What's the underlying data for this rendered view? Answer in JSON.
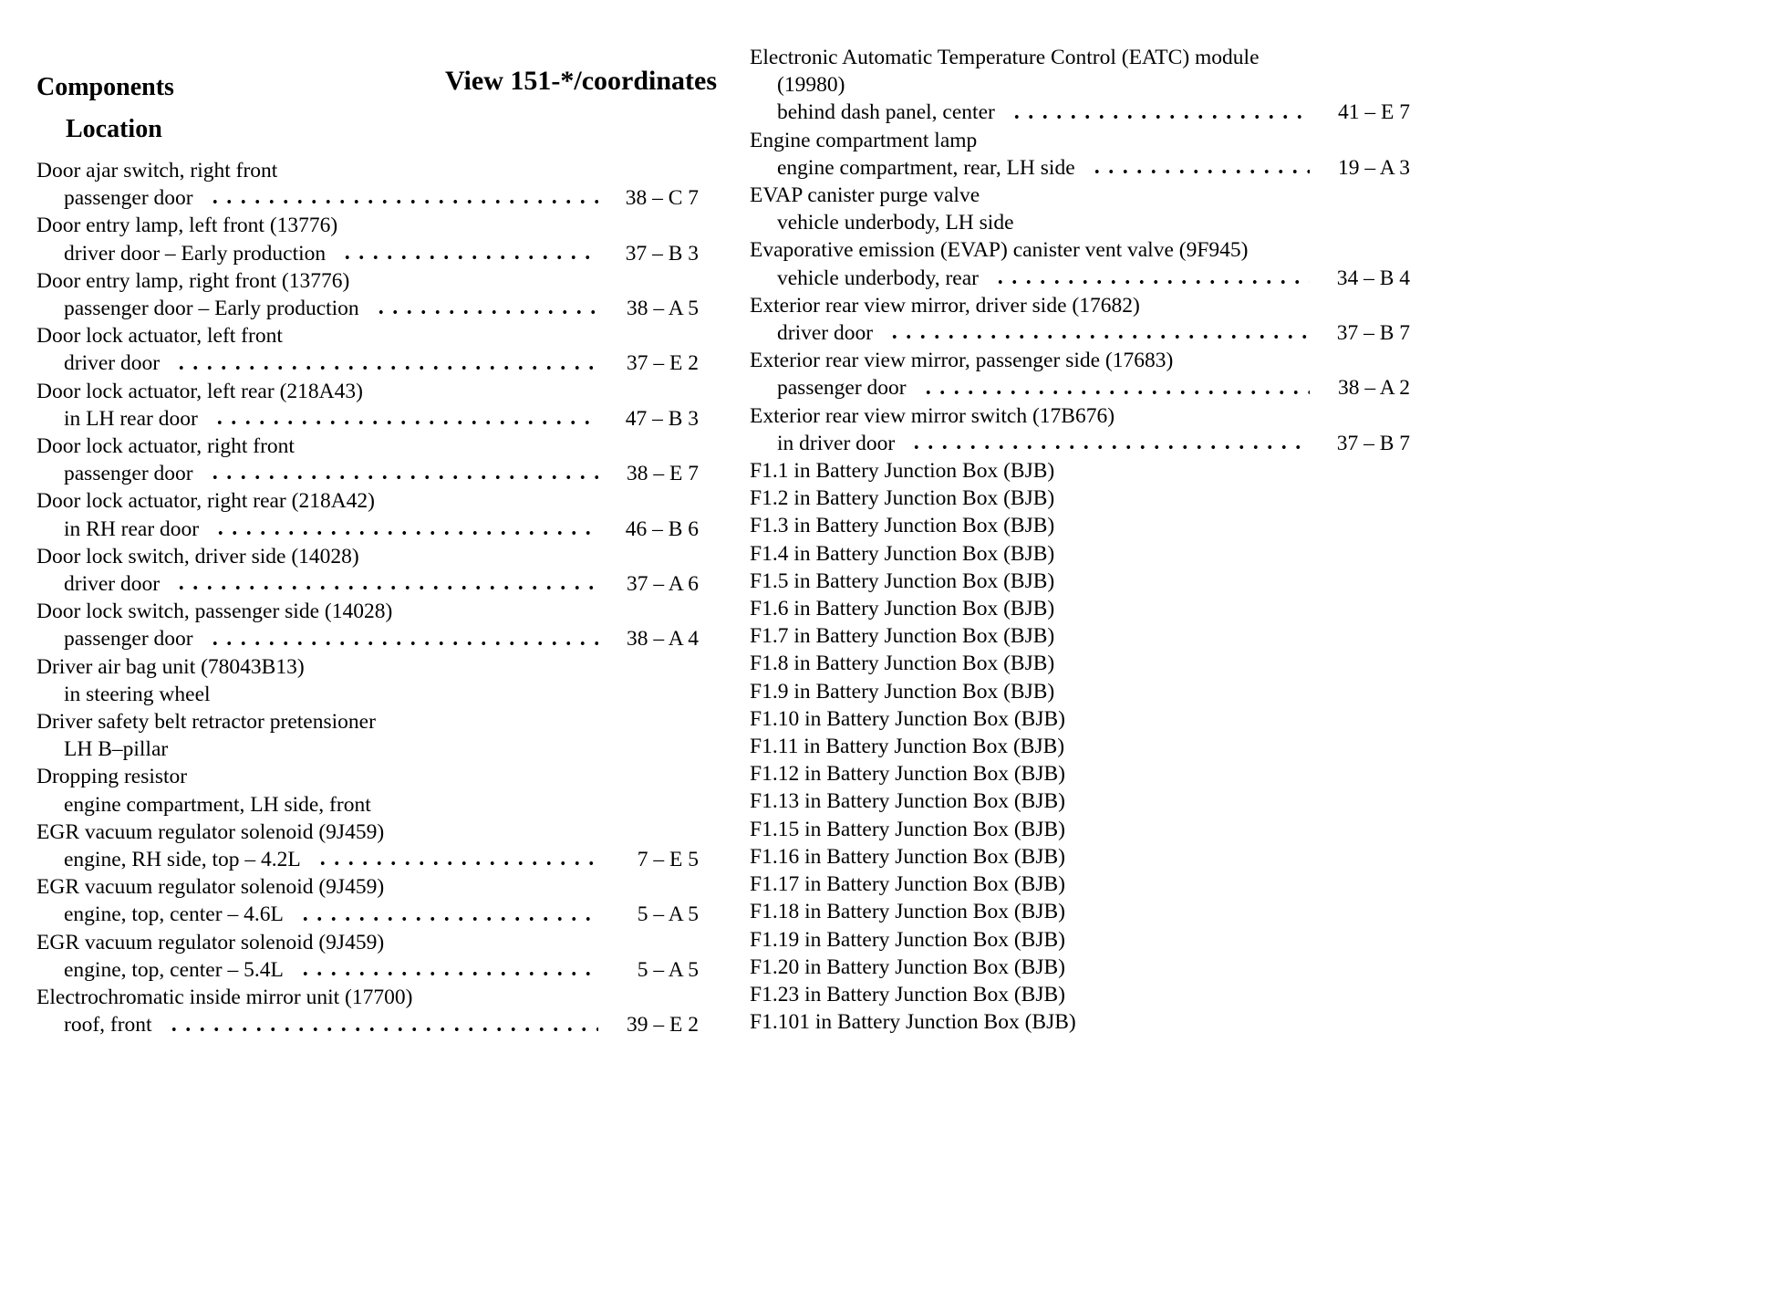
{
  "header": {
    "view_title": "View 151-*/coordinates",
    "components_heading": "Components",
    "location_heading": "Location"
  },
  "left_entries": [
    {
      "name_lines": [
        "Door ajar switch, right front"
      ],
      "loc_lines": [
        {
          "text": "passenger door",
          "coord": "38 – C 7"
        }
      ]
    },
    {
      "name_lines": [
        "Door entry lamp, left front (13776)"
      ],
      "loc_lines": [
        {
          "text": "driver door – Early production",
          "coord": "37 – B 3"
        }
      ]
    },
    {
      "name_lines": [
        "Door entry lamp, right front (13776)"
      ],
      "loc_lines": [
        {
          "text": "passenger door – Early production",
          "coord": "38 – A 5"
        }
      ]
    },
    {
      "name_lines": [
        "Door lock actuator, left front"
      ],
      "loc_lines": [
        {
          "text": "driver door",
          "coord": "37 – E 2"
        }
      ]
    },
    {
      "name_lines": [
        "Door lock actuator, left rear (218A43)"
      ],
      "loc_lines": [
        {
          "text": "in LH rear door",
          "coord": "47 – B 3"
        }
      ]
    },
    {
      "name_lines": [
        "Door lock actuator, right front"
      ],
      "loc_lines": [
        {
          "text": "passenger door",
          "coord": "38 – E 7"
        }
      ]
    },
    {
      "name_lines": [
        "Door lock actuator, right rear (218A42)"
      ],
      "loc_lines": [
        {
          "text": "in RH rear door",
          "coord": "46 – B 6"
        }
      ]
    },
    {
      "name_lines": [
        "Door lock switch, driver side (14028)"
      ],
      "loc_lines": [
        {
          "text": "driver door",
          "coord": "37 – A 6"
        }
      ]
    },
    {
      "name_lines": [
        "Door lock switch, passenger side (14028)"
      ],
      "loc_lines": [
        {
          "text": "passenger door",
          "coord": "38 – A 4"
        }
      ]
    },
    {
      "name_lines": [
        "Driver air bag unit (78043B13)"
      ],
      "loc_lines": [
        {
          "text": "in steering wheel",
          "coord": ""
        }
      ]
    },
    {
      "name_lines": [
        "Driver safety belt retractor pretensioner"
      ],
      "loc_lines": [
        {
          "text": "LH B–pillar",
          "coord": ""
        }
      ]
    },
    {
      "name_lines": [
        "Dropping resistor"
      ],
      "loc_lines": [
        {
          "text": "engine compartment, LH side, front",
          "coord": ""
        }
      ]
    },
    {
      "name_lines": [
        "EGR vacuum regulator solenoid (9J459)"
      ],
      "loc_lines": [
        {
          "text": "engine, RH side, top – 4.2L",
          "coord": "7 – E 5"
        }
      ]
    },
    {
      "name_lines": [
        "EGR vacuum regulator solenoid (9J459)"
      ],
      "loc_lines": [
        {
          "text": "engine, top, center – 4.6L",
          "coord": "5 – A 5"
        }
      ]
    },
    {
      "name_lines": [
        "EGR vacuum regulator solenoid (9J459)"
      ],
      "loc_lines": [
        {
          "text": "engine, top, center – 5.4L",
          "coord": "5 – A 5"
        }
      ]
    },
    {
      "name_lines": [
        "Electrochromatic inside mirror unit (17700)"
      ],
      "loc_lines": [
        {
          "text": "roof, front",
          "coord": "39 – E 2"
        }
      ]
    }
  ],
  "right_entries": [
    {
      "name_lines": [
        "Electronic Automatic Temperature Control (EATC) module",
        "(19980)"
      ],
      "loc_lines": [
        {
          "text": "behind dash panel, center",
          "coord": "41 – E 7"
        }
      ]
    },
    {
      "name_lines": [
        "Engine compartment lamp"
      ],
      "loc_lines": [
        {
          "text": "engine compartment, rear, LH side",
          "coord": "19 – A 3"
        }
      ]
    },
    {
      "name_lines": [
        "EVAP canister purge valve"
      ],
      "loc_lines": [
        {
          "text": "vehicle underbody, LH side",
          "coord": ""
        }
      ]
    },
    {
      "name_lines": [
        "Evaporative emission (EVAP) canister vent valve (9F945)"
      ],
      "loc_lines": [
        {
          "text": "vehicle underbody, rear",
          "coord": "34 – B 4"
        }
      ]
    },
    {
      "name_lines": [
        "Exterior rear view mirror, driver side (17682)"
      ],
      "loc_lines": [
        {
          "text": "driver door",
          "coord": "37 – B 7"
        }
      ]
    },
    {
      "name_lines": [
        "Exterior rear view mirror, passenger side (17683)"
      ],
      "loc_lines": [
        {
          "text": "passenger door",
          "coord": "38 – A 2"
        }
      ]
    },
    {
      "name_lines": [
        "Exterior rear view mirror switch (17B676)"
      ],
      "loc_lines": [
        {
          "text": "in driver door",
          "coord": "37 – B 7"
        }
      ]
    },
    {
      "name_lines": [
        "F1.1 in Battery Junction Box (BJB)"
      ],
      "loc_lines": []
    },
    {
      "name_lines": [
        "F1.2 in Battery Junction Box (BJB)"
      ],
      "loc_lines": []
    },
    {
      "name_lines": [
        "F1.3 in Battery Junction Box (BJB)"
      ],
      "loc_lines": []
    },
    {
      "name_lines": [
        "F1.4 in Battery Junction Box (BJB)"
      ],
      "loc_lines": []
    },
    {
      "name_lines": [
        "F1.5 in Battery Junction Box (BJB)"
      ],
      "loc_lines": []
    },
    {
      "name_lines": [
        "F1.6 in Battery Junction Box (BJB)"
      ],
      "loc_lines": []
    },
    {
      "name_lines": [
        "F1.7 in Battery Junction Box (BJB)"
      ],
      "loc_lines": []
    },
    {
      "name_lines": [
        "F1.8 in Battery Junction Box (BJB)"
      ],
      "loc_lines": []
    },
    {
      "name_lines": [
        "F1.9 in Battery Junction Box (BJB)"
      ],
      "loc_lines": []
    },
    {
      "name_lines": [
        "F1.10 in Battery Junction Box (BJB)"
      ],
      "loc_lines": []
    },
    {
      "name_lines": [
        "F1.11 in Battery Junction Box (BJB)"
      ],
      "loc_lines": []
    },
    {
      "name_lines": [
        "F1.12 in Battery Junction Box (BJB)"
      ],
      "loc_lines": []
    },
    {
      "name_lines": [
        "F1.13 in Battery Junction Box (BJB)"
      ],
      "loc_lines": []
    },
    {
      "name_lines": [
        "F1.15 in Battery Junction Box (BJB)"
      ],
      "loc_lines": []
    },
    {
      "name_lines": [
        "F1.16 in Battery Junction Box (BJB)"
      ],
      "loc_lines": []
    },
    {
      "name_lines": [
        "F1.17 in Battery Junction Box (BJB)"
      ],
      "loc_lines": []
    },
    {
      "name_lines": [
        "F1.18 in Battery Junction Box (BJB)"
      ],
      "loc_lines": []
    },
    {
      "name_lines": [
        "F1.19 in Battery Junction Box (BJB)"
      ],
      "loc_lines": []
    },
    {
      "name_lines": [
        "F1.20 in Battery Junction Box (BJB)"
      ],
      "loc_lines": []
    },
    {
      "name_lines": [
        "F1.23 in Battery Junction Box (BJB)"
      ],
      "loc_lines": []
    },
    {
      "name_lines": [
        "F1.101 in Battery Junction Box (BJB)"
      ],
      "loc_lines": []
    }
  ]
}
